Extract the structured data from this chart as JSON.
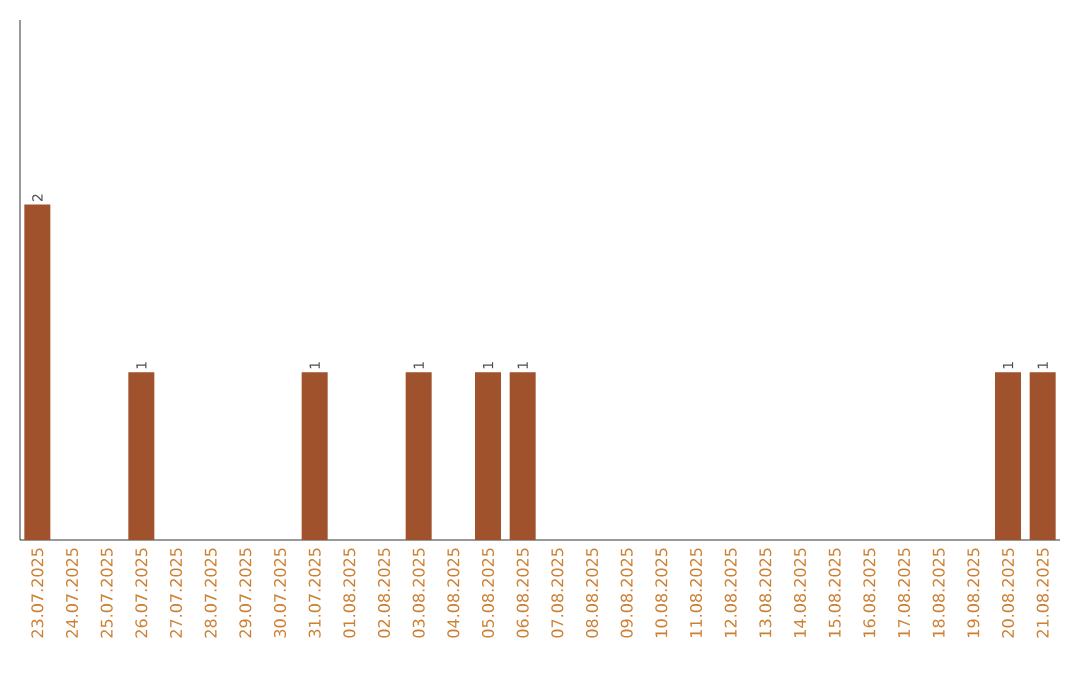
{
  "chart_data": {
    "type": "bar",
    "categories": [
      "23.07.2025",
      "24.07.2025",
      "25.07.2025",
      "26.07.2025",
      "27.07.2025",
      "28.07.2025",
      "29.07.2025",
      "30.07.2025",
      "31.07.2025",
      "01.08.2025",
      "02.08.2025",
      "03.08.2025",
      "04.08.2025",
      "05.08.2025",
      "06.08.2025",
      "07.08.2025",
      "08.08.2025",
      "09.08.2025",
      "10.08.2025",
      "11.08.2025",
      "12.08.2025",
      "13.08.2025",
      "14.08.2025",
      "15.08.2025",
      "16.08.2025",
      "17.08.2025",
      "18.08.2025",
      "19.08.2025",
      "20.08.2025",
      "21.08.2025"
    ],
    "values": [
      2,
      0,
      0,
      1,
      0,
      0,
      0,
      0,
      1,
      0,
      0,
      1,
      0,
      1,
      1,
      0,
      0,
      0,
      0,
      0,
      0,
      0,
      0,
      0,
      0,
      0,
      0,
      0,
      1,
      1
    ],
    "value_labels": [
      "2",
      null,
      null,
      "1",
      null,
      null,
      null,
      null,
      "1",
      null,
      null,
      "1",
      null,
      "1",
      "1",
      null,
      null,
      null,
      null,
      null,
      null,
      null,
      null,
      null,
      null,
      null,
      null,
      null,
      "1",
      "1"
    ],
    "color": "#a0522d",
    "ylim": [
      0,
      3.1
    ],
    "tick_labels": "x"
  }
}
